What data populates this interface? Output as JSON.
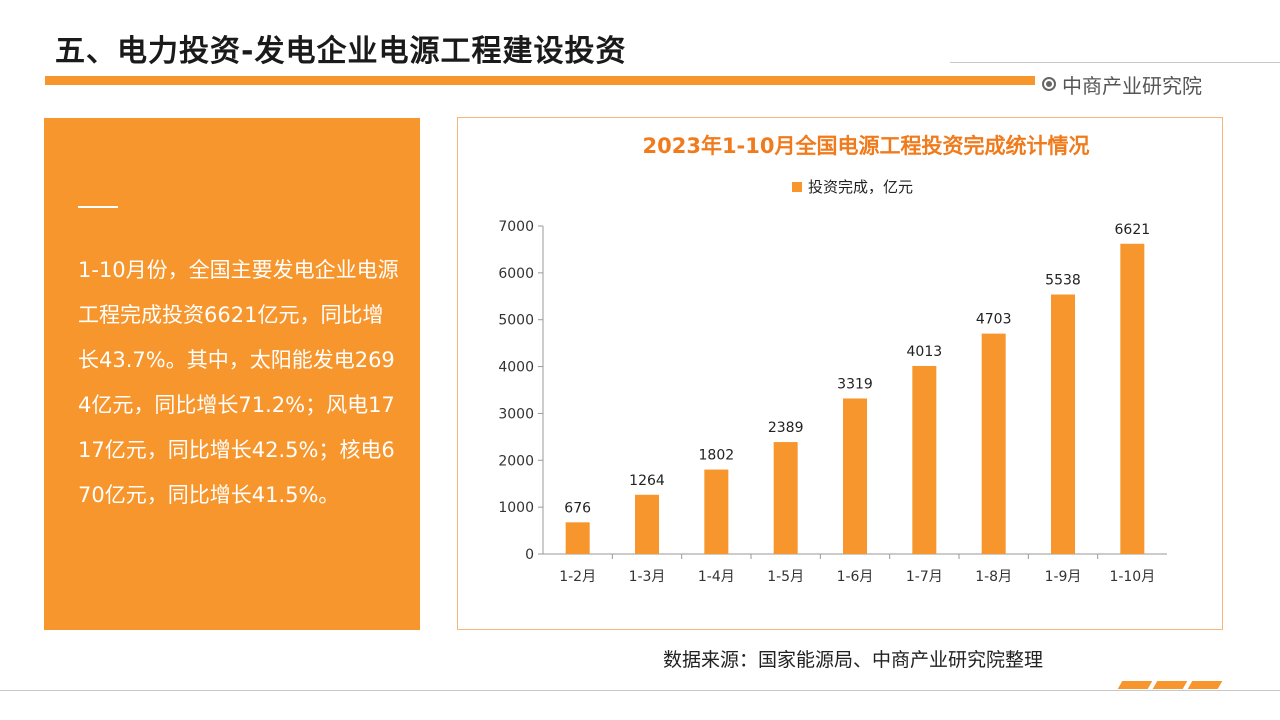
{
  "header": {
    "title": "五、电力投资-发电企业电源工程建设投资",
    "brand": "中商产业研究院"
  },
  "summary": {
    "text": "1-10月份，全国主要发电企业电源工程完成投资6621亿元，同比增长43.7%。其中，太阳能发电2694亿元，同比增长71.2%；风电1717亿元，同比增长42.5%；核电670亿元，同比增长41.5%。"
  },
  "footer": {
    "source": "数据来源：国家能源局、中商产业研究院整理"
  },
  "colors": {
    "accent": "#f7962d",
    "title_accent": "#f07b1d"
  },
  "chart_data": {
    "type": "bar",
    "title": "2023年1-10月全国电源工程投资完成统计情况",
    "legend": "top-center",
    "categories": [
      "1-2月",
      "1-3月",
      "1-4月",
      "1-5月",
      "1-6月",
      "1-7月",
      "1-8月",
      "1-9月",
      "1-10月"
    ],
    "series": [
      {
        "name": "投资完成，亿元",
        "values": [
          676,
          1264,
          1802,
          2389,
          3319,
          4013,
          4703,
          5538,
          6621
        ]
      }
    ],
    "ylim": [
      0,
      7000
    ],
    "yticks": [
      0,
      1000,
      2000,
      3000,
      4000,
      5000,
      6000,
      7000
    ],
    "grid": false,
    "data_labels": true
  }
}
